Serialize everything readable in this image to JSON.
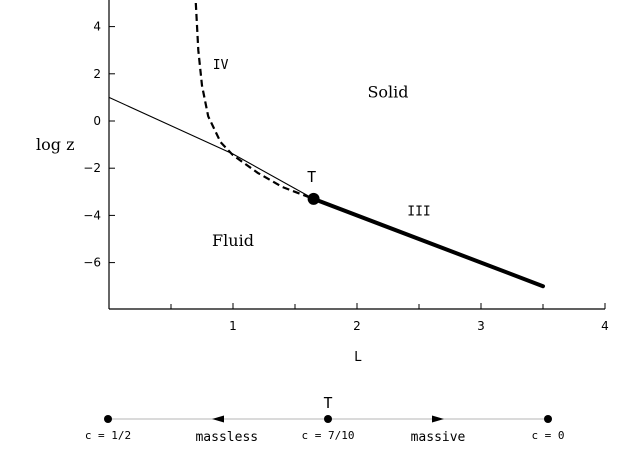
{
  "chart_data": {
    "type": "line",
    "xlabel": "L",
    "ylabel": "log z",
    "xlim": [
      0,
      4
    ],
    "ylim": [
      -8,
      5
    ],
    "x_ticks": [
      1,
      2,
      3,
      4
    ],
    "x_minor_ticks": [
      0.5,
      1.5,
      2.5,
      3.5
    ],
    "y_ticks": [
      4,
      2,
      0,
      -2,
      -4,
      -6
    ],
    "y_tick_labels": [
      "4",
      "2",
      "0",
      "−2",
      "−4",
      "−6"
    ],
    "series": [
      {
        "style": "thin-solid",
        "x": [
          0,
          1.0,
          1.65
        ],
        "y": [
          1.0,
          -1.4,
          -3.3
        ]
      },
      {
        "style": "dashed",
        "x": [
          0.7,
          0.72,
          0.75,
          0.8,
          0.9,
          1.0,
          1.2,
          1.4,
          1.65
        ],
        "y": [
          5.0,
          3.0,
          1.5,
          0.2,
          -0.9,
          -1.45,
          -2.2,
          -2.8,
          -3.3
        ]
      },
      {
        "style": "thick-solid",
        "x": [
          1.65,
          3.5
        ],
        "y": [
          -3.3,
          -7.0
        ]
      }
    ],
    "points": [
      {
        "label": "T",
        "x": 1.65,
        "y": -3.3
      }
    ],
    "region_labels": [
      {
        "text": "IV",
        "x": 0.9,
        "y": 2.2,
        "font": "mono"
      },
      {
        "text": "Solid",
        "x": 2.25,
        "y": 1.0,
        "font": "serif"
      },
      {
        "text": "III",
        "x": 2.5,
        "y": -4.0,
        "font": "mono"
      },
      {
        "text": "Fluid",
        "x": 1.0,
        "y": -5.3,
        "font": "serif"
      }
    ],
    "point_label": "T"
  },
  "flow_diagram": {
    "title": "T",
    "points": [
      {
        "label": "c = 1/2",
        "position": 0.0
      },
      {
        "label": "c = 7/10",
        "position": 0.5
      },
      {
        "label": "c = 0",
        "position": 1.0
      }
    ],
    "arrows": [
      {
        "direction": "left",
        "position": 0.25
      },
      {
        "direction": "right",
        "position": 0.75
      }
    ],
    "segment_labels": [
      {
        "text": "massless",
        "position": 0.27
      },
      {
        "text": "massive",
        "position": 0.75
      }
    ]
  }
}
